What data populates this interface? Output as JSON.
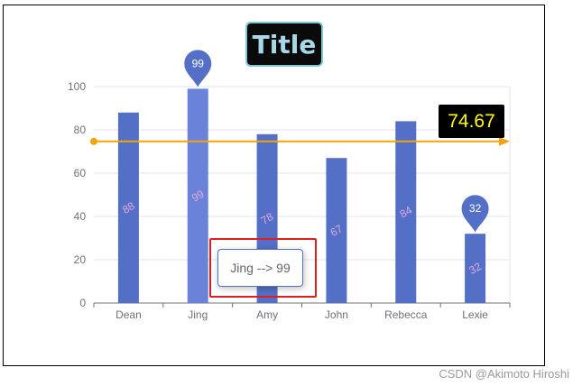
{
  "chart_data": {
    "type": "bar",
    "title": "Title",
    "categories": [
      "Dean",
      "Jing",
      "Amy",
      "John",
      "Rebecca",
      "Lexie"
    ],
    "series": [
      {
        "values": [
          88,
          99,
          78,
          67,
          84,
          32
        ]
      }
    ],
    "ylim": [
      0,
      100
    ],
    "y_ticks": [
      "0",
      "20",
      "40",
      "60",
      "80",
      "100"
    ],
    "grid": true,
    "mark_points": [
      {
        "type": "max",
        "category": "Jing",
        "value": 99,
        "label": "99"
      },
      {
        "type": "min",
        "category": "Lexie",
        "value": 32,
        "label": "32"
      }
    ],
    "mark_line": {
      "type": "average",
      "value": 74.67,
      "label": "74.67"
    },
    "tooltip": {
      "category": "Jing",
      "text": "Jing --> 99"
    },
    "colors": {
      "bar": "#5470c6",
      "bar_hover": "#6a83d8",
      "average_line": "#f5a30a",
      "bar_label": "#e3a8e0",
      "avg_label_text": "#ffff00",
      "highlight": "#e01e1e"
    }
  },
  "watermark": "CSDN @Akimoto Hiroshi"
}
